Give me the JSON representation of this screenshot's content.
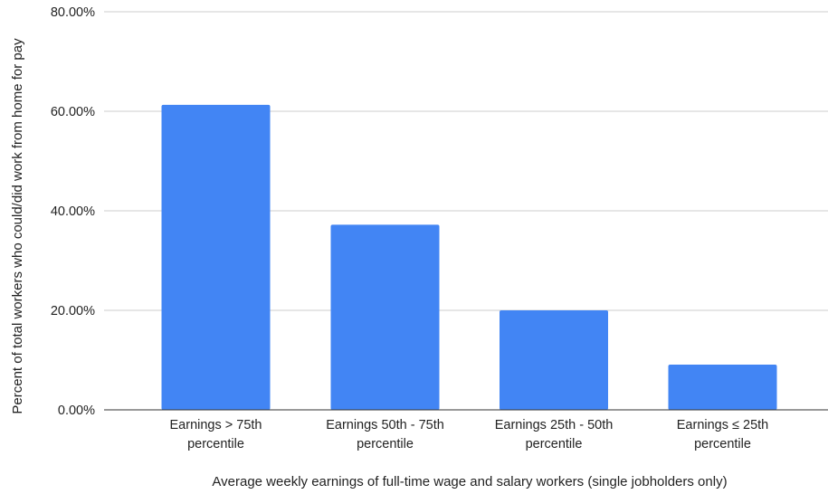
{
  "chart_data": {
    "type": "bar",
    "categories": [
      [
        "Earnings > 75th",
        "percentile"
      ],
      [
        "Earnings 50th - 75th",
        "percentile"
      ],
      [
        "Earnings 25th - 50th",
        "percentile"
      ],
      [
        "Earnings ≤ 25th",
        "percentile"
      ]
    ],
    "values": [
      61.3,
      37.2,
      20.0,
      9.1
    ],
    "xlabel": "Average weekly earnings of full-time wage and salary workers (single jobholders only)",
    "ylabel": "Percent of total workers who could/did work from home for pay",
    "ylim": [
      0,
      80
    ],
    "yticks": [
      "0.00%",
      "20.00%",
      "40.00%",
      "60.00%",
      "80.00%"
    ],
    "grid": true,
    "bar_color": "#4285f4",
    "grid_color": "#cccccc",
    "baseline_color": "#333333"
  }
}
